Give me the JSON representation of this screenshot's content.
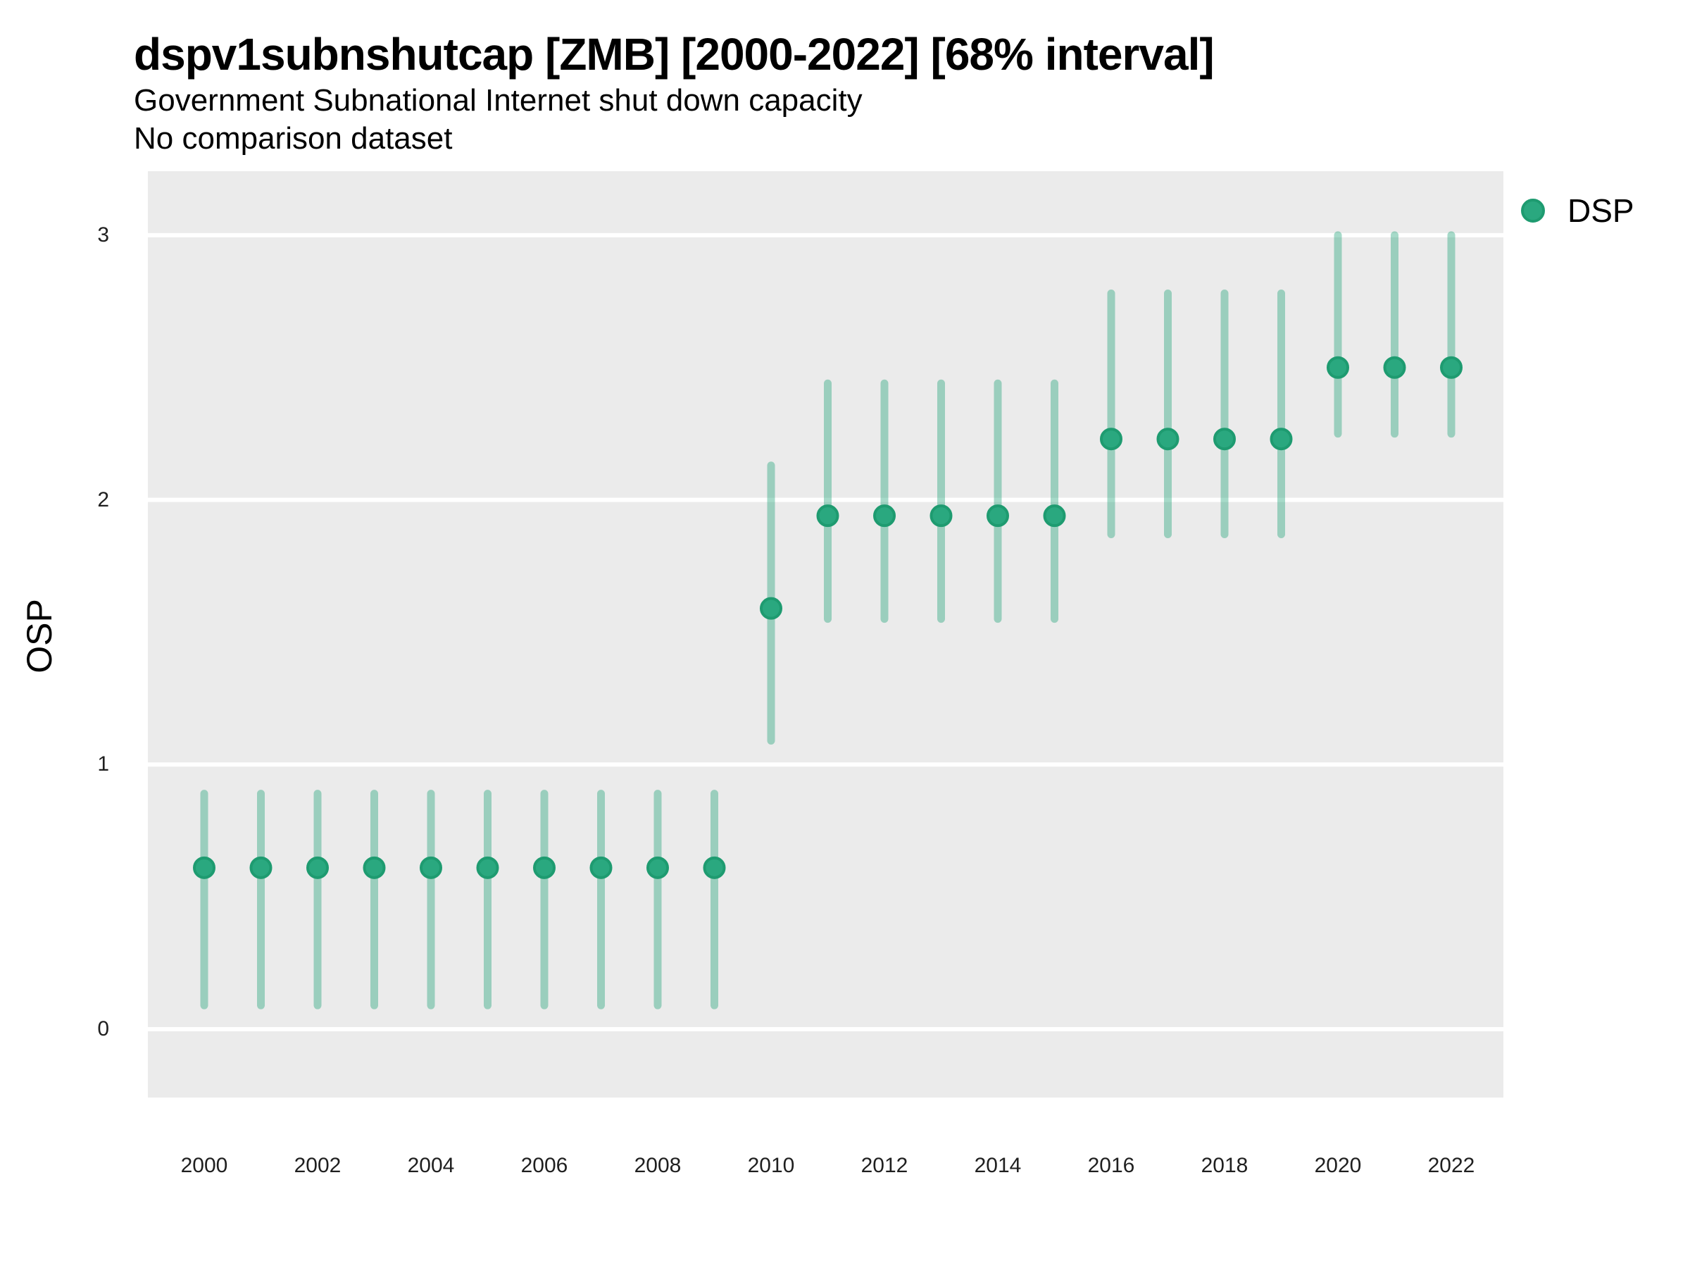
{
  "header": {
    "title": "dspv1subnshutcap [ZMB] [2000-2022] [68% interval]",
    "subtitle": "Government Subnational Internet shut down capacity",
    "note": "No comparison dataset"
  },
  "legend": {
    "items": [
      {
        "label": "DSP",
        "color": "#2aa87f"
      }
    ]
  },
  "chart_data": {
    "type": "scatter",
    "subtype": "point-interval",
    "title": "dspv1subnshutcap [ZMB] [2000-2022] [68% interval]",
    "subtitle": "Government Subnational Internet shut down capacity",
    "annotation": "No comparison dataset",
    "country": "ZMB",
    "interval": "68%",
    "xlabel": "",
    "ylabel": "OSP",
    "x": [
      2000,
      2001,
      2002,
      2003,
      2004,
      2005,
      2006,
      2007,
      2008,
      2009,
      2010,
      2011,
      2012,
      2013,
      2014,
      2015,
      2016,
      2017,
      2018,
      2019,
      2020,
      2021,
      2022
    ],
    "series": [
      {
        "name": "DSP",
        "estimates": [
          0.61,
          0.61,
          0.61,
          0.61,
          0.61,
          0.61,
          0.61,
          0.61,
          0.61,
          0.61,
          1.59,
          1.94,
          1.94,
          1.94,
          1.94,
          1.94,
          2.23,
          2.23,
          2.23,
          2.23,
          2.5,
          2.5,
          2.5
        ],
        "lower": [
          0.09,
          0.09,
          0.09,
          0.09,
          0.09,
          0.09,
          0.09,
          0.09,
          0.09,
          0.09,
          1.09,
          1.55,
          1.55,
          1.55,
          1.55,
          1.55,
          1.87,
          1.87,
          1.87,
          1.87,
          2.25,
          2.25,
          2.25
        ],
        "upper": [
          0.89,
          0.89,
          0.89,
          0.89,
          0.89,
          0.89,
          0.89,
          0.89,
          0.89,
          0.89,
          2.13,
          2.44,
          2.44,
          2.44,
          2.44,
          2.44,
          2.78,
          2.78,
          2.78,
          2.78,
          3.0,
          3.0,
          3.0
        ]
      }
    ],
    "xticks": [
      2000,
      2002,
      2004,
      2006,
      2008,
      2010,
      2012,
      2014,
      2016,
      2018,
      2020,
      2022
    ],
    "yticks": [
      0,
      1,
      2,
      3
    ],
    "ylim_panel": [
      -0.26,
      3.24
    ],
    "grid": "major-horizontal-only",
    "legend_position": "right-top",
    "colors": {
      "point_fill": "#2aa87f",
      "point_stroke": "#1e9b70",
      "interval": "rgba(42,168,127,0.42)",
      "panel_bg": "#ebebeb",
      "gridline": "#ffffff",
      "background": "#ffffff",
      "text": "#000000",
      "tick_text": "#1f1f1f"
    }
  }
}
